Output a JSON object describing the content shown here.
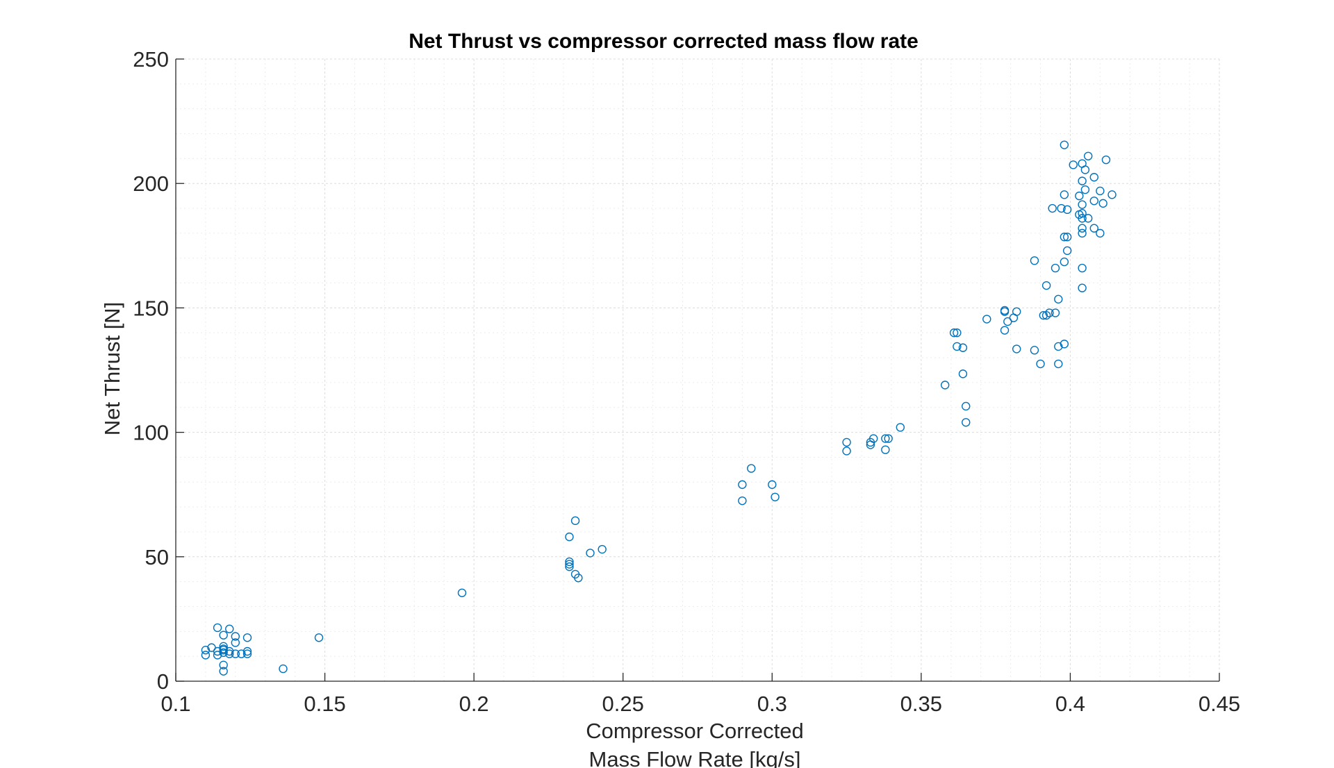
{
  "chart_data": {
    "type": "scatter",
    "title": "Net Thrust vs compressor corrected mass flow rate",
    "xlabel": [
      "Compressor Corrected",
      "Mass Flow Rate [kg/s]"
    ],
    "ylabel": "Net Thrust [N]",
    "xlim": [
      0.1,
      0.45
    ],
    "ylim": [
      0,
      250
    ],
    "xticks": [
      0.1,
      0.15,
      0.2,
      0.25,
      0.3,
      0.35,
      0.4,
      0.45
    ],
    "xtick_labels": [
      "0.1",
      "0.15",
      "0.2",
      "0.25",
      "0.3",
      "0.35",
      "0.4",
      "0.45"
    ],
    "yticks": [
      0,
      50,
      100,
      150,
      200,
      250
    ],
    "ytick_labels": [
      "0",
      "50",
      "100",
      "150",
      "200",
      "250"
    ],
    "grid": true,
    "minor_grid": true,
    "marker": "open-circle",
    "color": "#0072BD",
    "series": [
      {
        "points": [
          [
            0.11,
            12.5
          ],
          [
            0.11,
            10.5
          ],
          [
            0.112,
            13.5
          ],
          [
            0.114,
            10.5
          ],
          [
            0.114,
            12.0
          ],
          [
            0.114,
            21.5
          ],
          [
            0.116,
            18.5
          ],
          [
            0.116,
            14.0
          ],
          [
            0.116,
            13.0
          ],
          [
            0.116,
            12.5
          ],
          [
            0.116,
            11.5
          ],
          [
            0.116,
            6.5
          ],
          [
            0.116,
            4.0
          ],
          [
            0.118,
            21.0
          ],
          [
            0.118,
            12.0
          ],
          [
            0.118,
            11.0
          ],
          [
            0.12,
            18.0
          ],
          [
            0.12,
            15.5
          ],
          [
            0.12,
            11.0
          ],
          [
            0.122,
            11.0
          ],
          [
            0.124,
            17.5
          ],
          [
            0.124,
            12.0
          ],
          [
            0.124,
            11.0
          ],
          [
            0.136,
            5.0
          ],
          [
            0.148,
            17.5
          ],
          [
            0.196,
            35.5
          ],
          [
            0.232,
            58.0
          ],
          [
            0.232,
            48.0
          ],
          [
            0.232,
            47.0
          ],
          [
            0.232,
            46.0
          ],
          [
            0.234,
            64.5
          ],
          [
            0.234,
            43.0
          ],
          [
            0.235,
            41.5
          ],
          [
            0.239,
            51.5
          ],
          [
            0.243,
            53.0
          ],
          [
            0.29,
            79.0
          ],
          [
            0.29,
            72.5
          ],
          [
            0.293,
            85.5
          ],
          [
            0.3,
            79.0
          ],
          [
            0.301,
            74.0
          ],
          [
            0.325,
            96.0
          ],
          [
            0.325,
            92.5
          ],
          [
            0.333,
            95.0
          ],
          [
            0.333,
            96.0
          ],
          [
            0.334,
            97.5
          ],
          [
            0.338,
            97.5
          ],
          [
            0.338,
            93.0
          ],
          [
            0.339,
            97.5
          ],
          [
            0.343,
            102.0
          ],
          [
            0.358,
            119.0
          ],
          [
            0.361,
            140.0
          ],
          [
            0.362,
            140.0
          ],
          [
            0.362,
            134.5
          ],
          [
            0.364,
            134.0
          ],
          [
            0.364,
            123.5
          ],
          [
            0.365,
            110.5
          ],
          [
            0.365,
            104.0
          ],
          [
            0.372,
            145.5
          ],
          [
            0.378,
            149.0
          ],
          [
            0.378,
            148.5
          ],
          [
            0.378,
            141.0
          ],
          [
            0.379,
            144.5
          ],
          [
            0.381,
            146.0
          ],
          [
            0.382,
            148.5
          ],
          [
            0.382,
            133.5
          ],
          [
            0.388,
            169.0
          ],
          [
            0.388,
            133.0
          ],
          [
            0.39,
            127.5
          ],
          [
            0.391,
            147.0
          ],
          [
            0.392,
            147.0
          ],
          [
            0.392,
            159.0
          ],
          [
            0.393,
            148.0
          ],
          [
            0.394,
            190.0
          ],
          [
            0.395,
            148.0
          ],
          [
            0.395,
            166.0
          ],
          [
            0.396,
            134.5
          ],
          [
            0.396,
            127.5
          ],
          [
            0.396,
            153.5
          ],
          [
            0.397,
            190.0
          ],
          [
            0.398,
            215.5
          ],
          [
            0.398,
            195.5
          ],
          [
            0.398,
            178.5
          ],
          [
            0.398,
            168.5
          ],
          [
            0.398,
            135.5
          ],
          [
            0.399,
            189.5
          ],
          [
            0.399,
            178.5
          ],
          [
            0.399,
            173.0
          ],
          [
            0.401,
            207.5
          ],
          [
            0.403,
            195.0
          ],
          [
            0.403,
            187.5
          ],
          [
            0.404,
            208.0
          ],
          [
            0.404,
            201.0
          ],
          [
            0.404,
            191.5
          ],
          [
            0.404,
            188.0
          ],
          [
            0.404,
            186.0
          ],
          [
            0.404,
            182.0
          ],
          [
            0.404,
            180.0
          ],
          [
            0.404,
            166.0
          ],
          [
            0.404,
            158.0
          ],
          [
            0.405,
            205.5
          ],
          [
            0.405,
            197.5
          ],
          [
            0.406,
            211.0
          ],
          [
            0.406,
            186.0
          ],
          [
            0.408,
            202.5
          ],
          [
            0.408,
            193.0
          ],
          [
            0.408,
            182.0
          ],
          [
            0.41,
            180.0
          ],
          [
            0.41,
            197.0
          ],
          [
            0.411,
            192.0
          ],
          [
            0.412,
            209.5
          ],
          [
            0.414,
            195.5
          ]
        ]
      }
    ]
  }
}
